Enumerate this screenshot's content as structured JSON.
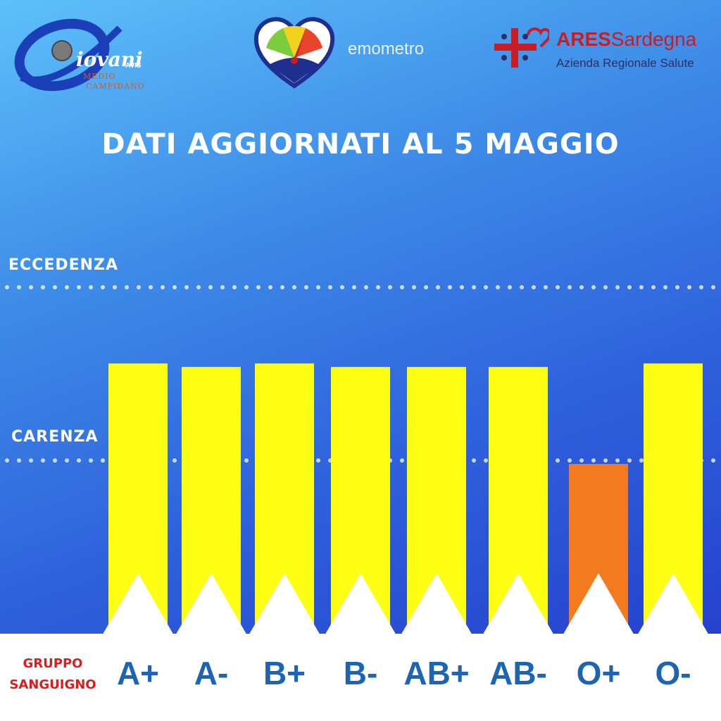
{
  "header": {
    "giovani": {
      "name": "iovani",
      "avis": "AVIS",
      "sub1": "MEDIO",
      "sub2": "CAMPIDANO"
    },
    "emometro": {
      "label": "emometro"
    },
    "ares": {
      "name_bold": "ARES",
      "name_rest": "Sardegna",
      "subtitle": "Azienda Regionale Salute"
    }
  },
  "colors": {
    "ok": "#ffff14",
    "shortage": "#f47a20",
    "axis_label": "#1c64b4",
    "group_label": "#e01b1b"
  },
  "chart_data": {
    "type": "bar",
    "title": "DATI AGGIORNATI AL 5 MAGGIO",
    "xlabel": "GRUPPO SANGUIGNO",
    "ylabel": "",
    "x_label_lines": [
      "GRUPPO",
      "SANGUIGNO"
    ],
    "categories": [
      "A+",
      "A-",
      "B+",
      "B-",
      "AB+",
      "AB-",
      "O+",
      "O-"
    ],
    "values": [
      0.78,
      0.77,
      0.78,
      0.77,
      0.77,
      0.77,
      0.49,
      0.78
    ],
    "status": [
      "ok",
      "ok",
      "ok",
      "ok",
      "ok",
      "ok",
      "shortage",
      "ok"
    ],
    "reference_lines": [
      {
        "label": "ECCEDENZA",
        "value": 1.0
      },
      {
        "label": "CARENZA",
        "value": 0.5
      }
    ],
    "ylim": [
      0,
      1
    ],
    "grid": false,
    "legend": "none"
  }
}
